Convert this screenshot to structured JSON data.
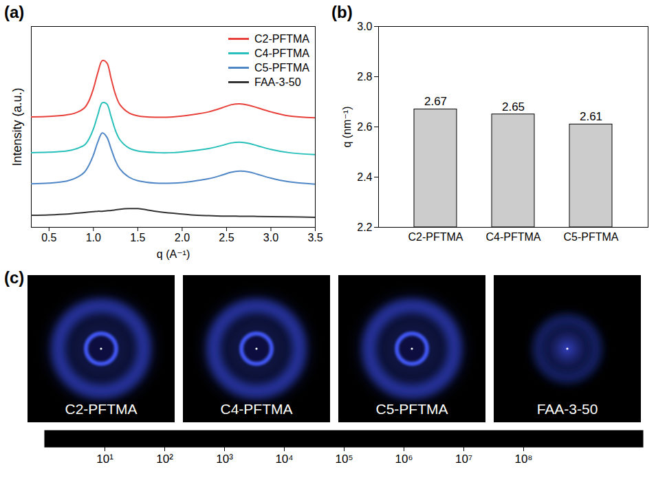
{
  "chart_data": [
    {
      "type": "line",
      "title": "(a)",
      "xlabel": "q (A⁻¹)",
      "ylabel": "Intensity (a.u.)",
      "x": [
        0.3,
        0.5,
        0.7,
        0.8,
        0.9,
        0.95,
        1.0,
        1.05,
        1.1,
        1.15,
        1.2,
        1.25,
        1.3,
        1.4,
        1.5,
        1.7,
        1.9,
        2.1,
        2.3,
        2.45,
        2.55,
        2.65,
        2.75,
        2.85,
        3.0,
        3.2,
        3.5
      ],
      "series": [
        {
          "name": "C2-PFTMA",
          "color": "#e8403a",
          "values": [
            5.5,
            5.52,
            5.6,
            5.7,
            5.95,
            6.3,
            6.9,
            7.7,
            8.3,
            8.2,
            7.4,
            6.6,
            6.1,
            5.7,
            5.55,
            5.48,
            5.5,
            5.6,
            5.75,
            5.95,
            6.1,
            6.15,
            6.08,
            5.95,
            5.75,
            5.55,
            5.45
          ]
        },
        {
          "name": "C4-PFTMA",
          "color": "#26bfb9",
          "values": [
            3.72,
            3.74,
            3.8,
            3.9,
            4.1,
            4.4,
            4.9,
            5.6,
            6.2,
            6.15,
            5.5,
            4.8,
            4.35,
            3.95,
            3.8,
            3.72,
            3.72,
            3.8,
            3.92,
            4.08,
            4.2,
            4.24,
            4.18,
            4.06,
            3.88,
            3.72,
            3.62
          ]
        },
        {
          "name": "C5-PFTMA",
          "color": "#4f86c6",
          "values": [
            2.17,
            2.2,
            2.3,
            2.45,
            2.75,
            3.1,
            3.6,
            4.25,
            4.7,
            4.5,
            3.9,
            3.3,
            2.9,
            2.5,
            2.32,
            2.2,
            2.2,
            2.28,
            2.42,
            2.6,
            2.74,
            2.8,
            2.76,
            2.64,
            2.45,
            2.27,
            2.15
          ]
        },
        {
          "name": "FAA-3-50",
          "color": "#333333",
          "values": [
            0.6,
            0.62,
            0.66,
            0.7,
            0.74,
            0.76,
            0.78,
            0.8,
            0.8,
            0.82,
            0.84,
            0.87,
            0.9,
            0.93,
            0.93,
            0.8,
            0.7,
            0.62,
            0.58,
            0.56,
            0.56,
            0.55,
            0.55,
            0.54,
            0.53,
            0.52,
            0.5
          ]
        }
      ],
      "xlim": [
        0.3,
        3.5
      ],
      "xticks": [
        {
          "value": 0.5,
          "label": "0.5"
        },
        {
          "value": 1,
          "label": "1.0"
        },
        {
          "value": 1.5,
          "label": "1.5"
        },
        {
          "value": 2,
          "label": "2.0"
        },
        {
          "value": 2.5,
          "label": "2.5"
        },
        {
          "value": 3,
          "label": "3.0"
        },
        {
          "value": 3.5,
          "label": "3.5"
        }
      ],
      "ylim": [
        0,
        10
      ],
      "yticks": [],
      "tick_labels": "x",
      "legend": "top-right"
    },
    {
      "type": "bar",
      "title": "(b)",
      "ylabel": "q (nm⁻¹)",
      "categories": [
        "C2-PFTMA",
        "C4-PFTMA",
        "C5-PFTMA"
      ],
      "values": [
        2.67,
        2.65,
        2.61
      ],
      "colors": [
        "#e8403a",
        "#26bfb9",
        "#4f86c6"
      ],
      "ylim": [
        2.2,
        3.0
      ],
      "yticks": [
        2.2,
        2.4,
        2.6,
        2.8,
        {
          "value": 3,
          "label": "3.0"
        }
      ],
      "data_labels": true
    },
    {
      "type": "image",
      "title": "(c)",
      "images": [
        "C2-PFTMA",
        "C4-PFTMA",
        "C5-PFTMA",
        "FAA-3-50"
      ],
      "colorbar_range": [
        1,
        10000000000
      ],
      "colorbar_ticks": [
        {
          "value": 10,
          "label": "10¹"
        },
        {
          "value": 100,
          "label": "10²"
        },
        {
          "value": 1000,
          "label": "10³"
        },
        {
          "value": 10000,
          "label": "10⁴"
        },
        {
          "value": 100000,
          "label": "10⁵"
        },
        {
          "value": 1000000,
          "label": "10⁶"
        },
        {
          "value": 10000000,
          "label": "10⁷"
        },
        {
          "value": 100000000,
          "label": "10⁸"
        }
      ],
      "log": true
    }
  ]
}
